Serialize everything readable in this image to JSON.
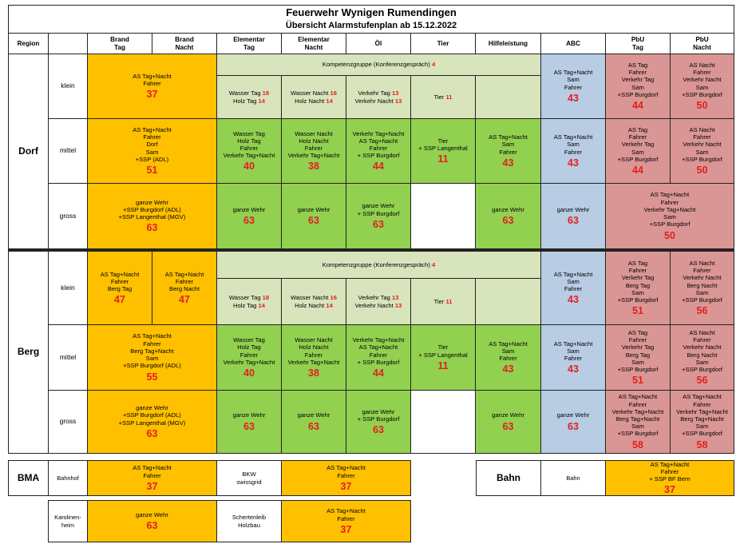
{
  "title": "Feuerwehr Wynigen Rumendingen",
  "subtitle": "Übersicht Alarmstufenplan ab 15.12.2022",
  "headers": {
    "region": "Region",
    "brand_tag": [
      "Brand",
      "Tag"
    ],
    "brand_nacht": [
      "Brand",
      "Nacht"
    ],
    "elementar_tag": [
      "Elementar",
      "Tag"
    ],
    "elementar_nacht": [
      "Elementar",
      "Nacht"
    ],
    "oel": "Öl",
    "tier": "Tier",
    "hilfeleistung": "Hilfeleistung",
    "abc": "ABC",
    "pbu_tag": [
      "PbU",
      "Tag"
    ],
    "pbu_nacht": [
      "PbU",
      "Nacht"
    ]
  },
  "regions": {
    "dorf": "Dorf",
    "berg": "Berg",
    "bma": "BMA",
    "bahn": "Bahn"
  },
  "sizes": {
    "klein": "klein",
    "mittel": "mittel",
    "gross": "gross"
  },
  "kompetenz": {
    "label": "Kompetenzgruppe (Konferenzgespräch)",
    "num": "4"
  },
  "common": {
    "wasser_tag": [
      "Wasser Tag",
      "Holz Tag"
    ],
    "wasser_tag_nums": [
      "18",
      "14"
    ],
    "wasser_nacht": [
      "Wasser Nacht",
      "Holz Nacht"
    ],
    "wasser_nacht_nums": [
      "16",
      "14"
    ],
    "verkehr": [
      "Verkehr Tag",
      "Verkehr Nacht"
    ],
    "verkehr_nums": [
      "13",
      "13"
    ],
    "tier_klein": "Tier",
    "tier_klein_num": "11",
    "ganze_wehr": "ganze Wehr",
    "ganze_wehr_ssp": [
      "ganze Wehr",
      "+ SSP Burgdorf"
    ],
    "el_tag_mittel": [
      "Wasser Tag",
      "Holz Tag",
      "Fahrer",
      "Verkehr Tag+Nacht"
    ],
    "el_nacht_mittel": [
      "Wasser Nacht",
      "Holz Nacht",
      "Fahrer",
      "Verkehr Tag+Nacht"
    ],
    "oel_mittel": [
      "Verkehr Tag+Nacht",
      "AS Tag+Nacht",
      "Fahrer",
      "+ SSP Burgdorf"
    ],
    "tier_mittel": [
      "Tier",
      "+ SSP Langenthal"
    ],
    "hilfe_mittel": [
      "AS Tag+Nacht",
      "Sam",
      "Fahrer"
    ],
    "abc_std": [
      "AS Tag+Nacht",
      "Sam",
      "Fahrer"
    ]
  },
  "dorf": {
    "brand_klein": [
      "AS Tag+Nacht",
      "Fahrer"
    ],
    "brand_klein_num": "37",
    "brand_mittel": [
      "AS Tag+Nacht",
      "Fahrer",
      "Dorf",
      "Sam",
      "+SSP (ADL)"
    ],
    "brand_mittel_num": "51",
    "brand_gross": [
      "ganze Wehr",
      "+SSP Burgdorf (ADL)",
      "+SSP Langenthal (MGV)"
    ],
    "brand_gross_num": "63",
    "pbu_tag": [
      "AS Tag",
      "Fahrer",
      "Verkehr Tag",
      "Sam",
      "+SSP Burgdorf"
    ],
    "pbu_tag_num": "44",
    "pbu_nacht": [
      "AS Nacht",
      "Fahrer",
      "Verkehr Nacht",
      "Sam",
      "+SSP Burgdorf"
    ],
    "pbu_nacht_num": "50",
    "pbu_gross": [
      "AS Tag+Nacht",
      "Fahrer",
      "Verkehr Tag+Nacht",
      "Sam",
      "+SSP Burgdorf"
    ],
    "pbu_gross_num": "50"
  },
  "berg": {
    "brand_tag_klein": [
      "AS Tag+Nacht",
      "Fahrer",
      "Berg Tag"
    ],
    "brand_tag_klein_num": "47",
    "brand_nacht_klein": [
      "AS Tag+Nacht",
      "Fahrer",
      "Berg Nacht"
    ],
    "brand_nacht_klein_num": "47",
    "brand_mittel": [
      "AS Tag+Nacht",
      "Fahrer",
      "Berg Tag+Nacht",
      "Sam",
      "+SSP Burgdorf (ADL)"
    ],
    "brand_mittel_num": "55",
    "brand_gross": [
      "ganze Wehr",
      "+SSP Burgdorf (ADL)",
      "+SSP Langenthal (MGV)"
    ],
    "brand_gross_num": "63",
    "pbu_tag": [
      "AS Tag",
      "Fahrer",
      "Verkehr Tag",
      "Berg Tag",
      "Sam",
      "+SSP Burgdorf"
    ],
    "pbu_tag_num": "51",
    "pbu_nacht": [
      "AS Nacht",
      "Fahrer",
      "Verkehr Nacht",
      "Berg Nacht",
      "Sam",
      "+SSP Burgdorf"
    ],
    "pbu_nacht_num": "56",
    "pbu_tag_gross": [
      "AS Tag+Nacht",
      "Fahrer",
      "Verkehr Tag+Nacht",
      "Berg Tag+Nacht",
      "Sam",
      "+SSP Burgdorf"
    ],
    "pbu_tag_gross_num": "58",
    "pbu_nacht_gross": [
      "AS Tag+Nacht",
      "Fahrer",
      "Verkehr Tag+Nacht",
      "Berg Tag+Nacht",
      "Sam",
      "+SSP Burgdorf"
    ],
    "pbu_nacht_gross_num": "58"
  },
  "numbers": {
    "n37": "37",
    "n40": "40",
    "n38": "38",
    "n44": "44",
    "n11": "11",
    "n43": "43",
    "n63": "63"
  },
  "bma": {
    "bahnhof": "Bahnhof",
    "bahnhof_brand": [
      "AS Tag+Nacht",
      "Fahrer"
    ],
    "bahnhof_brand_num": "37",
    "bkw": [
      "BKW",
      "swissgrid"
    ],
    "bkw_brand": [
      "AS Tag+Nacht",
      "Fahrer"
    ],
    "bkw_brand_num": "37",
    "karolinenheim": [
      "Karolinen-",
      "heim"
    ],
    "karolinenheim_brand": "ganze Wehr",
    "karolinenheim_num": "63",
    "schertenleib": [
      "Schertenleib",
      "Holzbau"
    ],
    "schertenleib_brand": [
      "AS Tag+Nacht",
      "Fahrer"
    ],
    "schertenleib_num": "37"
  },
  "bahn": {
    "label": "Bahn",
    "detail": [
      "AS Tag+Nacht",
      "Fahrer",
      "+ SSP BF Bern"
    ],
    "num": "37"
  },
  "colors": {
    "orange": "#ffc000",
    "green": "#92d050",
    "lightgreen": "#d8e4bc",
    "blue": "#b8cce4",
    "red": "#da9694",
    "number": "#e41e1e"
  }
}
